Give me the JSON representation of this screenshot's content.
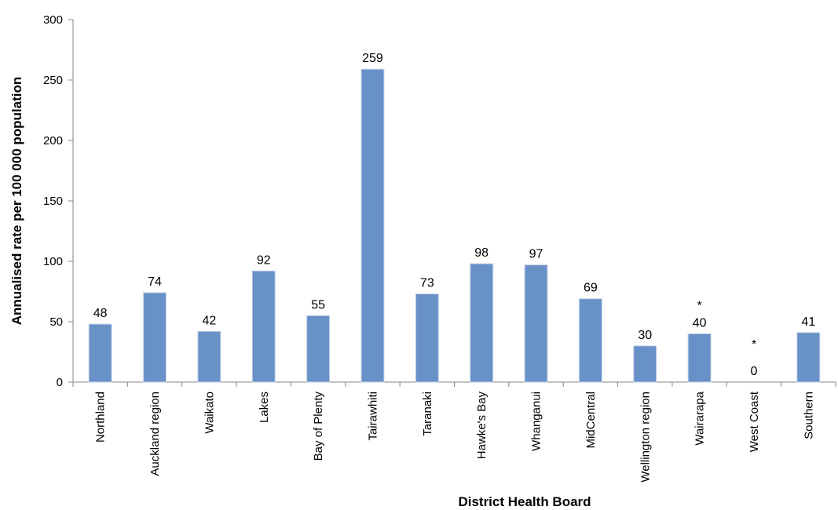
{
  "chart_data": {
    "type": "bar",
    "categories": [
      "Northland",
      "Auckland region",
      "Waikato",
      "Lakes",
      "Bay of Plenty",
      "Tairawhiti",
      "Taranaki",
      "Hawke's Bay",
      "Whanganui",
      "MidCentral",
      "Wellington region",
      "Wairarapa",
      "West Coast",
      "Southern"
    ],
    "values": [
      48,
      74,
      42,
      92,
      55,
      259,
      73,
      98,
      97,
      69,
      30,
      40,
      0,
      41
    ],
    "data_labels": [
      "48",
      "74",
      "42",
      "92",
      "55",
      "259",
      "73",
      "98",
      "97",
      "69",
      "30",
      "40",
      "0",
      "41"
    ],
    "annotations": [
      "",
      "",
      "",
      "",
      "",
      "",
      "",
      "",
      "",
      "",
      "",
      "*",
      "*",
      ""
    ],
    "xlabel": "District Health Board",
    "ylabel": "Annualised rate per 100 000 population",
    "ylim": [
      0,
      300
    ],
    "yticks": [
      "0",
      "50",
      "100",
      "150",
      "200",
      "250",
      "300"
    ],
    "grid": false,
    "colors": {
      "bar": "#6891c8",
      "axis": "#868686"
    }
  }
}
